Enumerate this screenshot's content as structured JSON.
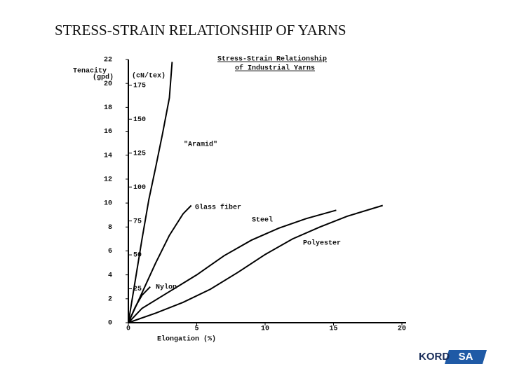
{
  "slide_title": "STRESS-STRAIN RELATIONSHIP OF YARNS",
  "logo": [
    "KORD",
    "SA"
  ],
  "chart_data": {
    "type": "line",
    "title": [
      "Stress-Strain Relationship",
      "of Industrial Yarns"
    ],
    "x_label": "Elongation (%)",
    "y_label": [
      "Tenacity",
      "(gpd)"
    ],
    "y2_label": "(cN/tex)",
    "xlim": [
      0,
      20
    ],
    "xticks": [
      0,
      5,
      10,
      15,
      20
    ],
    "ylim": [
      0,
      22
    ],
    "yticks": [
      0,
      2,
      4,
      6,
      8,
      10,
      12,
      14,
      16,
      18,
      20,
      22
    ],
    "y2lim": [
      0,
      194
    ],
    "y2ticks": [
      25,
      50,
      75,
      100,
      125,
      150,
      175
    ],
    "series": [
      {
        "name": "\"Aramid\"",
        "color": "#000000",
        "x": [
          0,
          0.5,
          1,
          1.5,
          2,
          2.5,
          3,
          3.2
        ],
        "values": [
          0,
          3.5,
          7,
          10.3,
          13,
          15.8,
          18.8,
          21.8
        ]
      },
      {
        "name": "Glass fiber",
        "color": "#000000",
        "x": [
          0,
          1,
          2,
          3,
          4,
          4.6
        ],
        "values": [
          0,
          2.5,
          5,
          7.3,
          9.1,
          9.8
        ]
      },
      {
        "name": "Steel",
        "color": "#000000",
        "x": [
          0,
          0.5,
          1,
          1.6
        ],
        "values": [
          0,
          1.3,
          2.3,
          3
        ]
      },
      {
        "name": "Polyester",
        "color": "#000000",
        "x": [
          0,
          1,
          3,
          5,
          7,
          9,
          11,
          13,
          15.2
        ],
        "values": [
          0,
          1.2,
          2.6,
          4,
          5.6,
          6.9,
          7.9,
          8.7,
          9.4
        ]
      },
      {
        "name": "Nylon",
        "color": "#000000",
        "x": [
          0,
          2,
          4,
          6,
          8,
          10,
          12,
          14,
          16,
          18.6
        ],
        "values": [
          0,
          0.8,
          1.7,
          2.8,
          4.2,
          5.7,
          7,
          8,
          8.9,
          9.8
        ]
      }
    ]
  }
}
